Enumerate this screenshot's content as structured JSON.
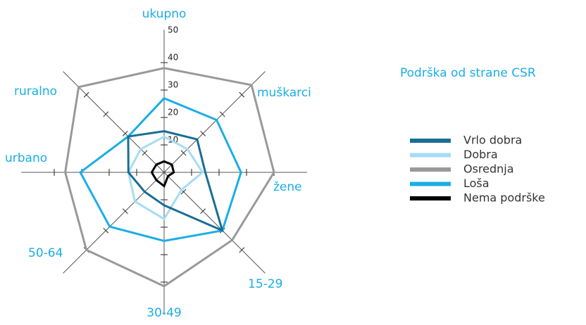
{
  "chart_data": {
    "type": "radar",
    "legend_title": "Podrška od strane CSR",
    "categories": [
      "ukupno",
      "muškarci",
      "žene",
      "15-29",
      "30-49",
      "50-64",
      "urbano",
      "ruralno"
    ],
    "rlim": [
      0,
      50
    ],
    "rticks": [
      10,
      20,
      30,
      40,
      50
    ],
    "series": [
      {
        "name": "Vrlo dobra",
        "color": "#1a6e94",
        "values": [
          15,
          17,
          15,
          30,
          12,
          10,
          13,
          18.5
        ]
      },
      {
        "name": "Dobra",
        "color": "#a6dcf5",
        "values": [
          13,
          12,
          14,
          9,
          17,
          15,
          13,
          12
        ]
      },
      {
        "name": "Osrednja",
        "color": "#999999",
        "values": [
          38,
          45,
          40,
          35,
          41.5,
          40,
          36,
          44
        ]
      },
      {
        "name": "Loša",
        "color": "#1aaee5",
        "values": [
          27,
          27,
          28,
          30,
          25,
          28,
          30.5,
          18.5
        ]
      },
      {
        "name": "Nema podrške",
        "color": "#000000",
        "values": [
          4,
          4,
          3.5,
          2,
          5,
          4,
          4.5,
          4
        ]
      }
    ]
  }
}
